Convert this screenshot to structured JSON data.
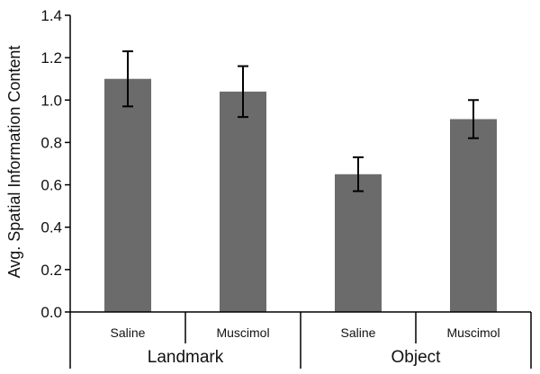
{
  "chart_data": {
    "type": "bar",
    "ylabel": "Avg. Spatial Information Content",
    "ylim": [
      0.0,
      1.4
    ],
    "yticks": [
      "0.0",
      "0.2",
      "0.4",
      "0.6",
      "0.8",
      "1.0",
      "1.2",
      "1.4"
    ],
    "yticks_values": [
      0.0,
      0.2,
      0.4,
      0.6,
      0.8,
      1.0,
      1.2,
      1.4
    ],
    "categories": [
      "Saline",
      "Muscimol",
      "Saline",
      "Muscimol"
    ],
    "groups": [
      {
        "label": "Landmark",
        "members": [
          0,
          1
        ]
      },
      {
        "label": "Object",
        "members": [
          2,
          3
        ]
      }
    ],
    "values": [
      1.1,
      1.04,
      0.65,
      0.91
    ],
    "errors": [
      0.13,
      0.12,
      0.08,
      0.09
    ],
    "bar_color": "#6b6b6b",
    "grid": false
  }
}
